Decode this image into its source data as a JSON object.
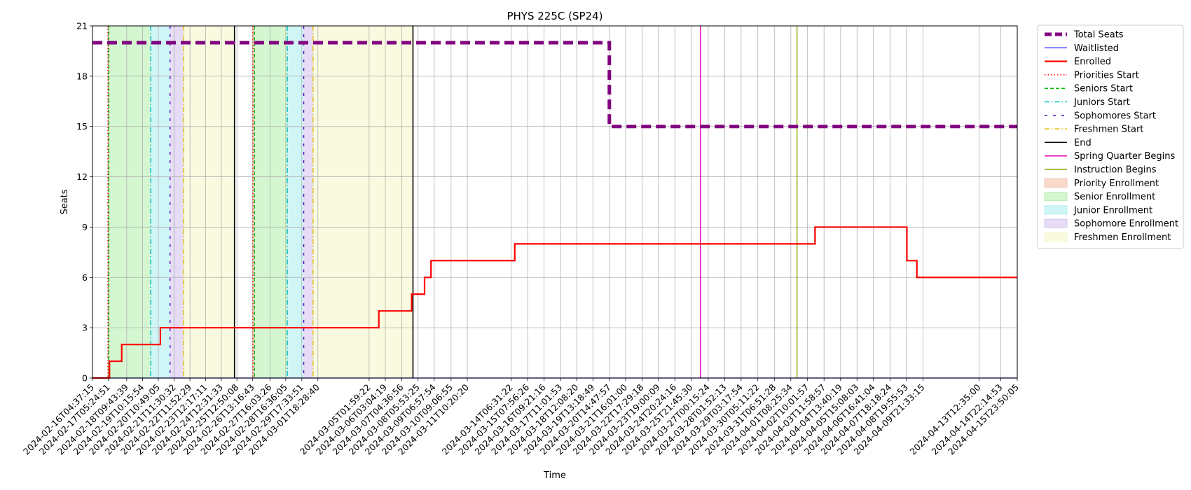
{
  "chart_data": {
    "type": "line",
    "title": "PHYS 225C (SP24)",
    "xlabel": "Time",
    "ylabel": "Seats",
    "ylim": [
      0,
      21
    ],
    "yticks": [
      0,
      3,
      6,
      9,
      12,
      15,
      18,
      21
    ],
    "grid": true,
    "legend_position": "outside-right",
    "x_tick_labels": [
      "2024-02-16T04:37:15",
      "2024-02-17T05:24:51",
      "2024-02-18T09:43:39",
      "2024-02-19T10:15:54",
      "2024-02-20T10:49:05",
      "2024-02-21T11:30:32",
      "2024-02-22T11:52:29",
      "2024-02-23T12:17:11",
      "2024-02-24T12:31:33",
      "2024-02-25T12:50:08",
      "2024-02-26T13:16:43",
      "2024-02-27T16:03:26",
      "2024-02-28T16:36:05",
      "2024-02-29T17:33:51",
      "2024-03-01T18:28:40",
      "2024-03-05T01:59:22",
      "2024-03-06T03:04:19",
      "2024-03-07T04:36:56",
      "2024-03-08T05:53:25",
      "2024-03-09T06:57:54",
      "2024-03-10T09:06:55",
      "2024-03-11T10:20:20",
      "2024-03-14T06:31:22",
      "2024-03-15T07:56:26",
      "2024-03-16T09:21:16",
      "2024-03-17T11:01:53",
      "2024-03-18T12:08:20",
      "2024-03-19T13:18:49",
      "2024-03-20T14:47:57",
      "2024-03-21T16:01:00",
      "2024-03-22T17:29:18",
      "2024-03-23T19:00:09",
      "2024-03-24T20:24:16",
      "2024-03-25T21:45:30",
      "2024-03-27T00:15:24",
      "2024-03-28T01:52:13",
      "2024-03-29T03:17:54",
      "2024-03-30T05:11:22",
      "2024-03-31T06:51:28",
      "2024-04-01T08:25:34",
      "2024-04-02T10:01:57",
      "2024-04-03T11:58:57",
      "2024-04-04T13:40:19",
      "2024-04-05T15:08:03",
      "2024-04-06T16:41:04",
      "2024-04-07T18:18:24",
      "2024-04-08T19:55:53",
      "2024-04-09T21:33:15",
      "2024-04-13T12:35:00",
      "2024-04-14T22:14:53",
      "2024-04-15T23:50:05"
    ],
    "series": [
      {
        "name": "Total Seats",
        "color": "#800080",
        "style": "dashed-thick",
        "points": [
          [
            "2024-02-16T04:37:15",
            20
          ],
          [
            "2024-03-20T14:47:57",
            20
          ],
          [
            "2024-03-20T14:47:57",
            15
          ],
          [
            "2024-04-15T23:50:05",
            15
          ]
        ]
      },
      {
        "name": "Waitlisted",
        "color": "#0000ff",
        "style": "solid",
        "points": [
          [
            "2024-02-16T04:37:15",
            0
          ],
          [
            "2024-04-15T23:50:05",
            0
          ]
        ]
      },
      {
        "name": "Enrolled",
        "color": "#ff0000",
        "style": "step",
        "points": [
          [
            "2024-02-16T04:37:15",
            0
          ],
          [
            "2024-02-17T07:00:00",
            0
          ],
          [
            "2024-02-17T07:00:00",
            1
          ],
          [
            "2024-02-18T02:00:00",
            1
          ],
          [
            "2024-02-18T02:00:00",
            2
          ],
          [
            "2024-02-20T14:00:00",
            2
          ],
          [
            "2024-02-20T14:00:00",
            3
          ],
          [
            "2024-03-05T17:00:00",
            3
          ],
          [
            "2024-03-05T17:00:00",
            4
          ],
          [
            "2024-03-07T20:00:00",
            4
          ],
          [
            "2024-03-07T20:00:00",
            5
          ],
          [
            "2024-03-08T16:00:00",
            5
          ],
          [
            "2024-03-08T16:00:00",
            6
          ],
          [
            "2024-03-09T02:00:00",
            6
          ],
          [
            "2024-03-09T02:00:00",
            7
          ],
          [
            "2024-03-14T12:00:00",
            7
          ],
          [
            "2024-03-14T12:00:00",
            8
          ],
          [
            "2024-04-02T22:00:00",
            8
          ],
          [
            "2024-04-02T22:00:00",
            9
          ],
          [
            "2024-04-08T20:30:00",
            9
          ],
          [
            "2024-04-08T20:30:00",
            7
          ],
          [
            "2024-04-09T12:00:00",
            7
          ],
          [
            "2024-04-09T12:00:00",
            6
          ],
          [
            "2024-04-15T23:50:05",
            6
          ]
        ]
      }
    ],
    "events": [
      {
        "name": "Priorities Start",
        "color": "#ff0000",
        "style": "dotted",
        "x": [
          "2024-02-17T04:30:00",
          "2024-02-26T13:35:00"
        ]
      },
      {
        "name": "Seniors Start",
        "color": "#00bb00",
        "style": "dashed",
        "x": [
          "2024-02-17T06:00:00",
          "2024-02-26T16:00:00"
        ]
      },
      {
        "name": "Juniors Start",
        "color": "#00bfbf",
        "style": "dashdot",
        "x": [
          "2024-02-19T23:00:00",
          "2024-02-28T19:00:00"
        ]
      },
      {
        "name": "Sophomores Start",
        "color": "#5000c8",
        "style": "loosedot",
        "x": [
          "2024-02-21T05:00:00",
          "2024-02-29T20:30:00"
        ]
      },
      {
        "name": "Freshmen Start",
        "color": "#e0c000",
        "style": "dashdot",
        "x": [
          "2024-02-22T02:00:00",
          "2024-03-01T11:00:00"
        ]
      },
      {
        "name": "End",
        "color": "#000000",
        "style": "solid",
        "x": [
          "2024-02-25T09:00:00",
          "2024-03-07T22:00:00"
        ]
      },
      {
        "name": "Spring Quarter Begins",
        "color": "#e000b0",
        "style": "solid",
        "x": [
          "2024-03-26T12:00:00"
        ]
      },
      {
        "name": "Instruction Begins",
        "color": "#88aa00",
        "style": "solid",
        "x": [
          "2024-04-01T18:00:00"
        ]
      }
    ],
    "periods": [
      {
        "name": "Priority Enrollment",
        "color": "#f4c0a8",
        "spans": [
          [
            "2024-02-17T04:30:00",
            "2024-02-17T06:00:00"
          ],
          [
            "2024-02-26T13:35:00",
            "2024-02-26T16:00:00"
          ]
        ]
      },
      {
        "name": "Senior Enrollment",
        "color": "#b8f0b0",
        "spans": [
          [
            "2024-02-17T06:00:00",
            "2024-02-19T23:00:00"
          ],
          [
            "2024-02-26T16:00:00",
            "2024-02-28T19:00:00"
          ]
        ]
      },
      {
        "name": "Junior Enrollment",
        "color": "#b0eef0",
        "spans": [
          [
            "2024-02-19T23:00:00",
            "2024-02-21T05:00:00"
          ],
          [
            "2024-02-28T19:00:00",
            "2024-02-29T20:30:00"
          ]
        ]
      },
      {
        "name": "Sophomore Enrollment",
        "color": "#d6c4f0",
        "spans": [
          [
            "2024-02-21T05:00:00",
            "2024-02-22T02:00:00"
          ],
          [
            "2024-02-29T20:30:00",
            "2024-03-01T11:00:00"
          ]
        ]
      },
      {
        "name": "Freshmen Enrollment",
        "color": "#f6f6cc",
        "spans": [
          [
            "2024-02-22T02:00:00",
            "2024-02-25T09:00:00"
          ],
          [
            "2024-03-01T11:00:00",
            "2024-03-07T22:00:00"
          ]
        ]
      }
    ],
    "legend_order": [
      "Total Seats",
      "Waitlisted",
      "Enrolled",
      "Priorities Start",
      "Seniors Start",
      "Juniors Start",
      "Sophomores Start",
      "Freshmen Start",
      "End",
      "Spring Quarter Begins",
      "Instruction Begins",
      "Priority Enrollment",
      "Senior Enrollment",
      "Junior Enrollment",
      "Sophomore Enrollment",
      "Freshmen Enrollment"
    ]
  }
}
